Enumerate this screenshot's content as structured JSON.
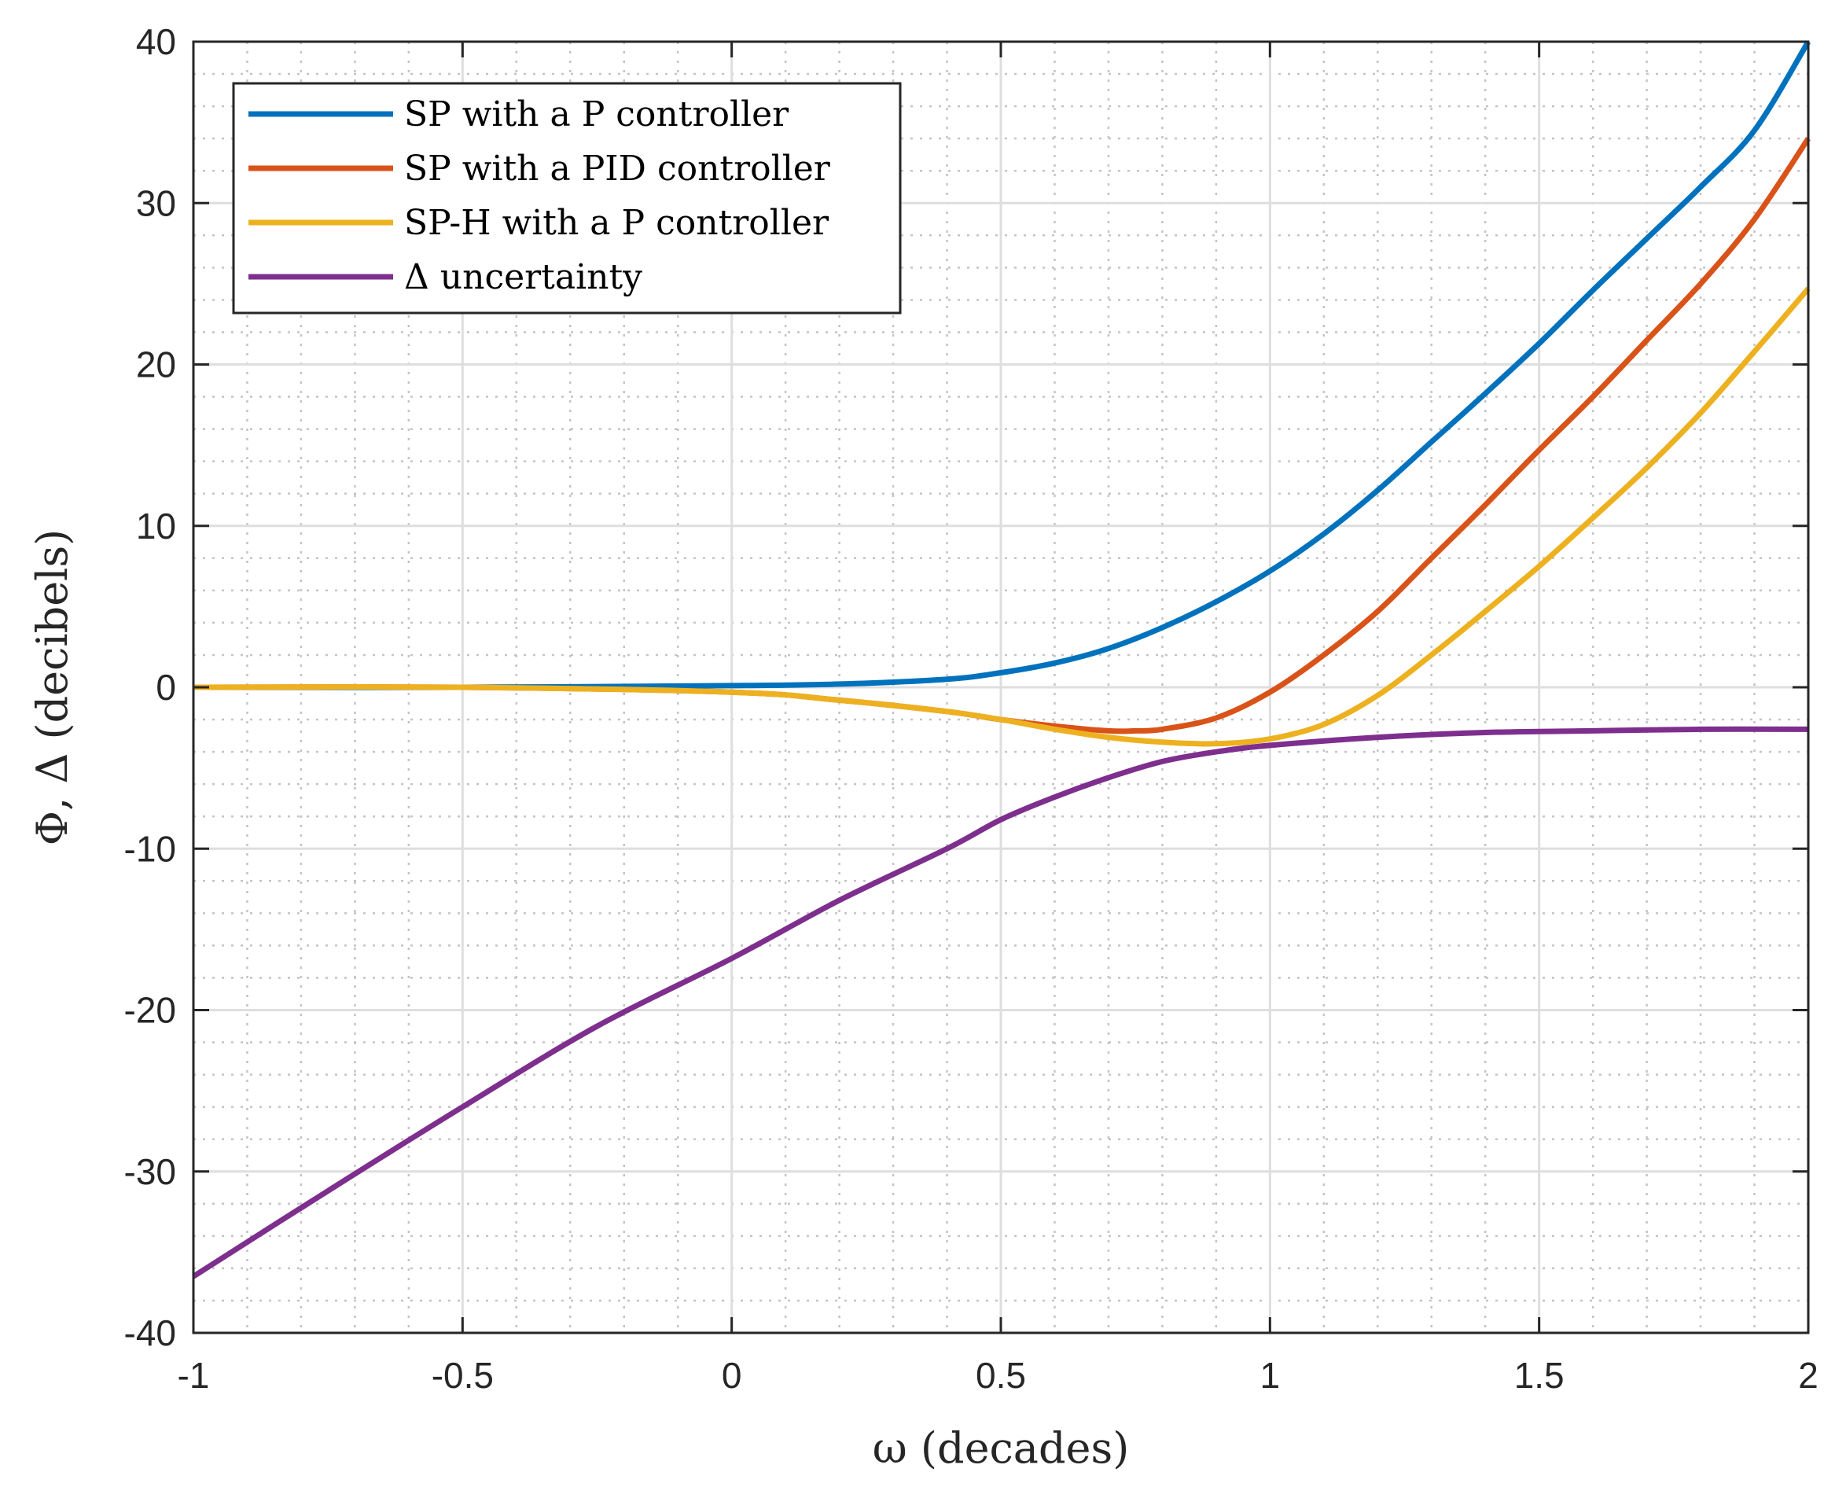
{
  "chart_data": {
    "type": "line",
    "title": "",
    "xlabel": "ω (decades)",
    "ylabel": "Φ, Δ (decibels)",
    "xlim": [
      -1,
      2
    ],
    "ylim": [
      -40,
      40
    ],
    "grid": true,
    "minor_grid": true,
    "legend_position": "top-left",
    "x_ticks": [
      -1,
      -0.5,
      0,
      0.5,
      1,
      1.5,
      2
    ],
    "x_tick_labels": [
      "-1",
      "-0.5",
      "0",
      "0.5",
      "1",
      "1.5",
      "2"
    ],
    "y_ticks": [
      -40,
      -30,
      -20,
      -10,
      0,
      10,
      20,
      30,
      40
    ],
    "y_tick_labels": [
      "-40",
      "-30",
      "-20",
      "-10",
      "0",
      "10",
      "20",
      "30",
      "40"
    ],
    "series": [
      {
        "name": "SP with a P controller",
        "color": "#0072BD",
        "x": [
          -1,
          -0.5,
          0,
          0.2,
          0.4,
          0.5,
          0.6,
          0.7,
          0.8,
          0.9,
          1.0,
          1.1,
          1.2,
          1.3,
          1.4,
          1.5,
          1.6,
          1.7,
          1.8,
          1.9,
          2.0
        ],
        "y": [
          0,
          0,
          0.1,
          0.2,
          0.5,
          0.9,
          1.5,
          2.4,
          3.7,
          5.3,
          7.2,
          9.5,
          12.2,
          15.2,
          18.2,
          21.3,
          24.6,
          27.8,
          31.0,
          34.5,
          40.0
        ]
      },
      {
        "name": "SP with a PID controller",
        "color": "#D95319",
        "x": [
          -1,
          -0.5,
          0,
          0.2,
          0.4,
          0.5,
          0.6,
          0.7,
          0.75,
          0.8,
          0.9,
          1.0,
          1.1,
          1.2,
          1.3,
          1.4,
          1.5,
          1.6,
          1.7,
          1.8,
          1.9,
          2.0
        ],
        "y": [
          0,
          0,
          -0.3,
          -0.8,
          -1.5,
          -2.0,
          -2.4,
          -2.7,
          -2.7,
          -2.6,
          -1.9,
          -0.3,
          2.0,
          4.7,
          8.0,
          11.3,
          14.7,
          18.0,
          21.5,
          25.0,
          29.0,
          34.0
        ]
      },
      {
        "name": "SP-H with a P controller",
        "color": "#EDB120",
        "x": [
          -1,
          -0.5,
          0,
          0.2,
          0.4,
          0.5,
          0.6,
          0.7,
          0.8,
          0.9,
          1.0,
          1.1,
          1.2,
          1.3,
          1.4,
          1.5,
          1.6,
          1.7,
          1.8,
          1.9,
          2.0
        ],
        "y": [
          0,
          0,
          -0.3,
          -0.8,
          -1.5,
          -2.0,
          -2.6,
          -3.1,
          -3.4,
          -3.5,
          -3.2,
          -2.3,
          -0.5,
          2.0,
          4.7,
          7.5,
          10.5,
          13.6,
          17.0,
          20.8,
          24.7
        ]
      },
      {
        "name": "Δ uncertainty",
        "color": "#7E2F8E",
        "x": [
          -1,
          -0.75,
          -0.5,
          -0.25,
          0,
          0.2,
          0.4,
          0.5,
          0.6,
          0.7,
          0.8,
          0.9,
          1.0,
          1.2,
          1.4,
          1.6,
          1.8,
          2.0
        ],
        "y": [
          -36.5,
          -31.2,
          -26.0,
          -21.0,
          -16.8,
          -13.2,
          -10.0,
          -8.2,
          -6.8,
          -5.6,
          -4.6,
          -4.0,
          -3.6,
          -3.1,
          -2.8,
          -2.7,
          -2.6,
          -2.6
        ]
      }
    ]
  }
}
